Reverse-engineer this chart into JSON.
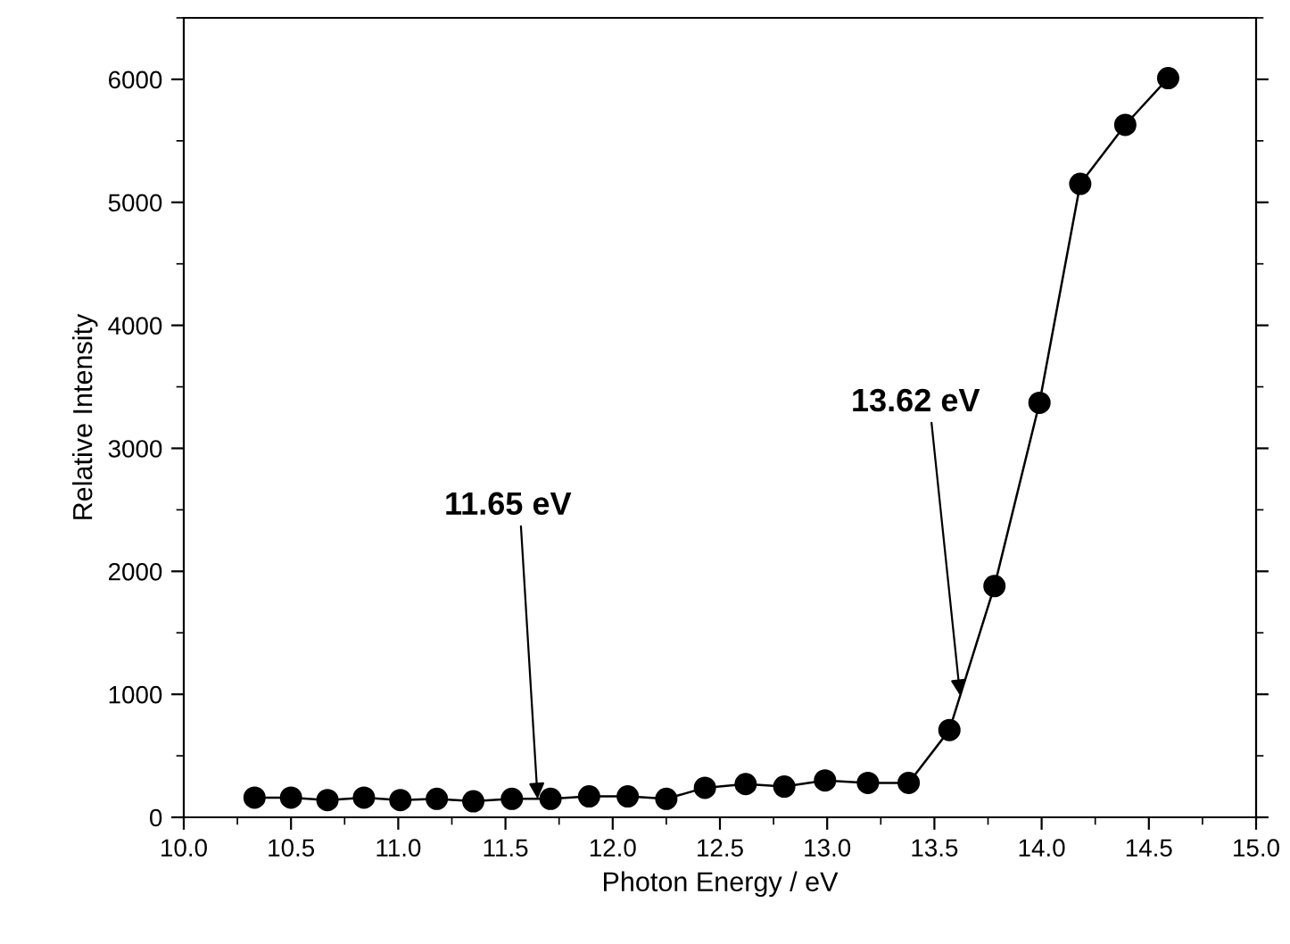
{
  "chart_data": {
    "type": "line",
    "xlabel": "Photon Energy / eV",
    "ylabel": "Relative Intensity",
    "x": [
      10.33,
      10.5,
      10.67,
      10.84,
      11.01,
      11.18,
      11.35,
      11.53,
      11.71,
      11.89,
      12.07,
      12.25,
      12.43,
      12.62,
      12.8,
      12.99,
      13.19,
      13.38,
      13.57,
      13.78,
      13.99,
      14.18,
      14.39,
      14.59
    ],
    "series": [
      {
        "color": "#000000",
        "values": [
          160,
          160,
          140,
          160,
          140,
          150,
          130,
          150,
          150,
          170,
          170,
          150,
          240,
          270,
          250,
          300,
          280,
          280,
          710,
          1880,
          3370,
          5150,
          5630,
          6010
        ]
      }
    ],
    "marker": "circle",
    "line_style": "solid",
    "xlim": [
      10.0,
      15.0
    ],
    "xticks": [
      {
        "value": 10.0,
        "label": "10.0"
      },
      {
        "value": 10.5,
        "label": "10.5"
      },
      {
        "value": 11.0,
        "label": "11.0"
      },
      {
        "value": 11.5,
        "label": "11.5"
      },
      {
        "value": 12.0,
        "label": "12.0"
      },
      {
        "value": 12.5,
        "label": "12.5"
      },
      {
        "value": 13.0,
        "label": "13.0"
      },
      {
        "value": 13.5,
        "label": "13.5"
      },
      {
        "value": 14.0,
        "label": "14.0"
      },
      {
        "value": 14.5,
        "label": "14.5"
      },
      {
        "value": 15.0,
        "label": "15.0"
      }
    ],
    "ylim": [
      0,
      6500
    ],
    "yticks": [
      0,
      1000,
      2000,
      3000,
      4000,
      5000,
      6000
    ],
    "grid": false,
    "legend": false,
    "annotations": [
      {
        "text": "11.65 eV",
        "x": 11.65,
        "y": 150
      },
      {
        "text": "13.62 eV",
        "x": 13.62,
        "y": 990
      }
    ]
  }
}
